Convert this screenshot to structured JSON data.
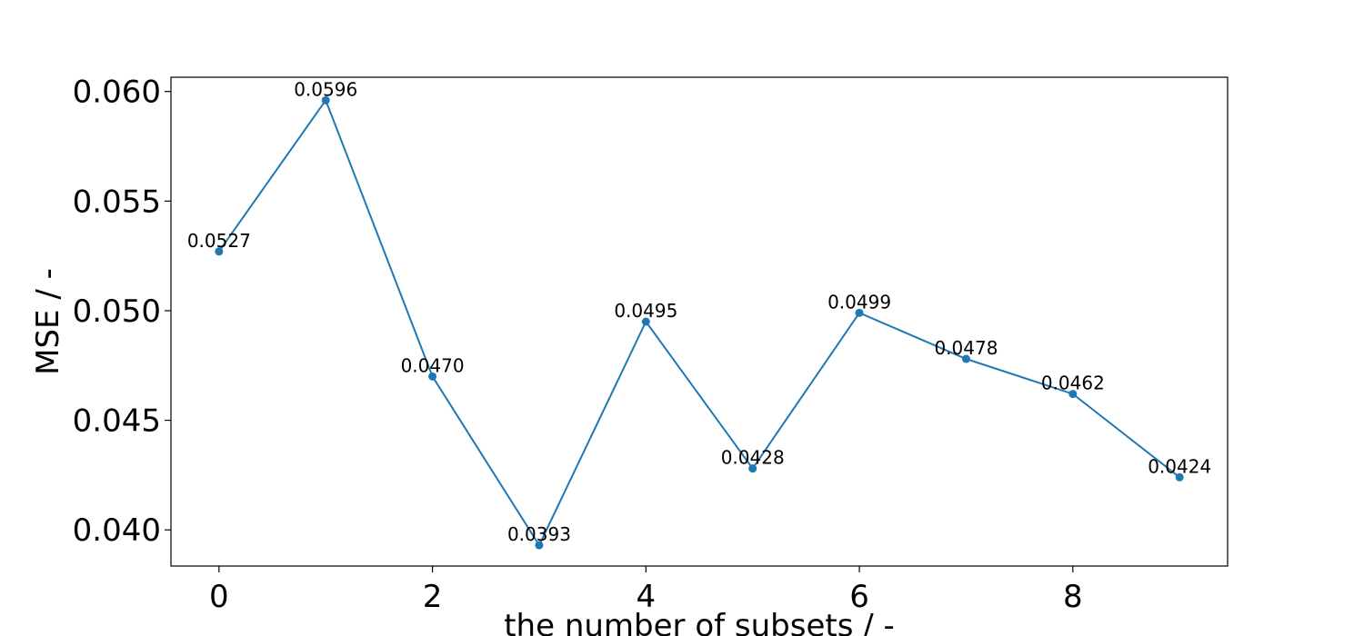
{
  "chart_data": {
    "type": "line",
    "title": "",
    "xlabel": "the number of subsets / -",
    "ylabel": "MSE / -",
    "x": [
      0,
      1,
      2,
      3,
      4,
      5,
      6,
      7,
      8,
      9
    ],
    "series": [
      {
        "values": [
          0.0527,
          0.0596,
          0.047,
          0.0393,
          0.0495,
          0.0428,
          0.0499,
          0.0478,
          0.0462,
          0.0424
        ],
        "color": "#1f77b4",
        "marker": "circle"
      }
    ],
    "data_labels": [
      "0.0527",
      "0.0596",
      "0.0470",
      "0.0393",
      "0.0495",
      "0.0428",
      "0.0499",
      "0.0478",
      "0.0462",
      "0.0424"
    ],
    "xlim": [
      -0.45,
      9.45
    ],
    "ylim": [
      0.03835,
      0.06065
    ],
    "xticks": [
      0,
      2,
      4,
      6,
      8
    ],
    "xtick_labels": [
      "0",
      "2",
      "4",
      "6",
      "8"
    ],
    "yticks": [
      0.04,
      0.045,
      0.05,
      0.055,
      0.06
    ],
    "ytick_labels": [
      "0.040",
      "0.045",
      "0.050",
      "0.055",
      "0.060"
    ],
    "grid": false,
    "legend": "none"
  }
}
